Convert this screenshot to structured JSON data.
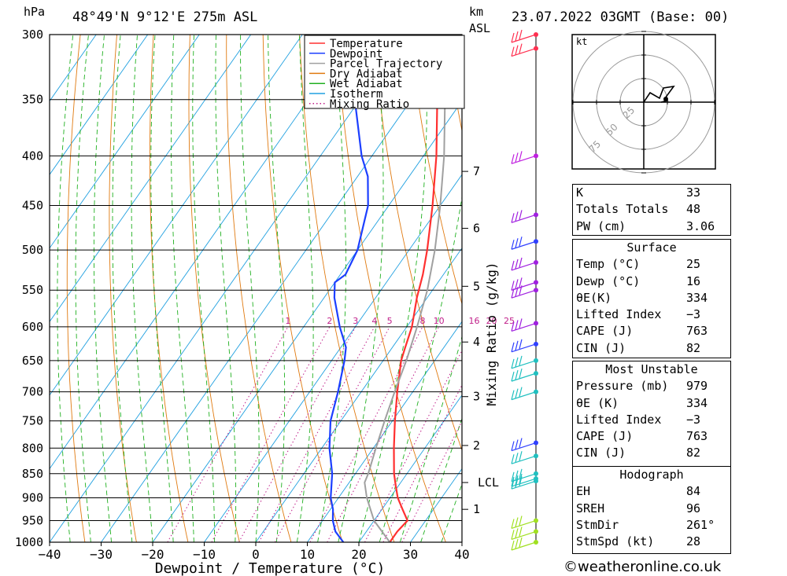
{
  "header": {
    "location": "48°49'N  9°12'E  275m  ASL",
    "hpa_label": "hPa",
    "km_label": "km",
    "asl_label": "ASL",
    "datetime": "23.07.2022  03GMT  (Base: 00)"
  },
  "credit": "©weatheronline.co.uk",
  "chart_data": {
    "type": "line",
    "xlabel": "Dewpoint / Temperature (°C)",
    "ylabel": "hPa",
    "mixing_ratio_axis_label": "Mixing Ratio (g/kg)",
    "xlim": [
      -40,
      40
    ],
    "ylim": [
      1000,
      300
    ],
    "x_ticks": [
      "−40",
      "−30",
      "−20",
      "−10",
      "0",
      "10",
      "20",
      "30",
      "40"
    ],
    "pressure_levels": [
      300,
      350,
      400,
      450,
      500,
      550,
      600,
      650,
      700,
      750,
      800,
      850,
      900,
      950,
      1000
    ],
    "height_ticks_km": [
      {
        "p": 925,
        "label": "1"
      },
      {
        "p": 795,
        "label": "2"
      },
      {
        "p": 708,
        "label": "3"
      },
      {
        "p": 622,
        "label": "4"
      },
      {
        "p": 545,
        "label": "5"
      },
      {
        "p": 475,
        "label": "6"
      },
      {
        "p": 415,
        "label": "7"
      },
      {
        "p": 868,
        "label": "LCL"
      }
    ],
    "mixing_ratio_labels": [
      "1",
      "2",
      "3",
      "4",
      "5",
      "8",
      "10",
      "16",
      "20",
      "25"
    ],
    "mixing_ratio_values": [
      1,
      2,
      3,
      4,
      5,
      8,
      10,
      16,
      20,
      25
    ],
    "legend": [
      {
        "name": "Temperature",
        "color": "#ff3030",
        "dotted": false
      },
      {
        "name": "Dewpoint",
        "color": "#1c3fff",
        "dotted": false
      },
      {
        "name": "Parcel Trajectory",
        "color": "#a0a0a0",
        "dotted": false
      },
      {
        "name": "Dry Adiabat",
        "color": "#e07a10",
        "dotted": false
      },
      {
        "name": "Wet Adiabat",
        "color": "#20b020",
        "dotted": false
      },
      {
        "name": "Isotherm",
        "color": "#20a0e0",
        "dotted": false
      },
      {
        "name": "Mixing Ratio",
        "color": "#c0208a",
        "dotted": true
      }
    ],
    "series": [
      {
        "name": "Temperature",
        "color": "#ff3030",
        "points": [
          [
            1000,
            26.0
          ],
          [
            975,
            26.0
          ],
          [
            950,
            26.5
          ],
          [
            925,
            24.0
          ],
          [
            900,
            21.5
          ],
          [
            875,
            19.5
          ],
          [
            850,
            17.5
          ],
          [
            800,
            14.0
          ],
          [
            750,
            10.5
          ],
          [
            700,
            7.0
          ],
          [
            650,
            3.5
          ],
          [
            630,
            2.5
          ],
          [
            600,
            1.0
          ],
          [
            560,
            -2.0
          ],
          [
            530,
            -4.0
          ],
          [
            500,
            -6.5
          ],
          [
            450,
            -11.5
          ],
          [
            400,
            -17.5
          ],
          [
            350,
            -25.0
          ],
          [
            300,
            -33.5
          ]
        ]
      },
      {
        "name": "Dewpoint",
        "color": "#1c3fff",
        "points": [
          [
            1000,
            17.0
          ],
          [
            975,
            14.0
          ],
          [
            950,
            12.0
          ],
          [
            925,
            10.5
          ],
          [
            900,
            8.5
          ],
          [
            850,
            5.5
          ],
          [
            800,
            1.5
          ],
          [
            750,
            -2.0
          ],
          [
            700,
            -4.5
          ],
          [
            650,
            -7.5
          ],
          [
            630,
            -9.0
          ],
          [
            600,
            -13.0
          ],
          [
            560,
            -18.0
          ],
          [
            540,
            -20.0
          ],
          [
            530,
            -19.0
          ],
          [
            500,
            -20.0
          ],
          [
            450,
            -24.0
          ],
          [
            420,
            -28.0
          ],
          [
            400,
            -32.0
          ],
          [
            350,
            -41.0
          ],
          [
            300,
            -51.0
          ]
        ]
      },
      {
        "name": "Parcel Trajectory",
        "color": "#a0a0a0",
        "points": [
          [
            1000,
            26.0
          ],
          [
            950,
            20.0
          ],
          [
            900,
            15.5
          ],
          [
            868,
            13.0
          ],
          [
            850,
            12.5
          ],
          [
            800,
            10.5
          ],
          [
            750,
            8.5
          ],
          [
            700,
            6.5
          ],
          [
            650,
            4.5
          ],
          [
            600,
            2.0
          ],
          [
            550,
            -1.0
          ],
          [
            500,
            -5.0
          ],
          [
            450,
            -10.0
          ],
          [
            400,
            -16.0
          ],
          [
            350,
            -23.5
          ],
          [
            300,
            -33.0
          ]
        ]
      }
    ],
    "hodograph": {
      "label": "kt",
      "rings": [
        "25",
        "50",
        "75"
      ]
    }
  },
  "indices": {
    "rows": [
      {
        "label": "K",
        "value": "33"
      },
      {
        "label": "Totals Totals",
        "value": "48"
      },
      {
        "label": "PW (cm)",
        "value": "3.06"
      }
    ]
  },
  "surface": {
    "title": "Surface",
    "rows": [
      {
        "label": "Temp (°C)",
        "value": "25"
      },
      {
        "label": "Dewp (°C)",
        "value": "16"
      },
      {
        "label": "θE(K)",
        "value": "334"
      },
      {
        "label": "Lifted Index",
        "value": "−3"
      },
      {
        "label": "CAPE (J)",
        "value": "763"
      },
      {
        "label": "CIN (J)",
        "value": "82"
      }
    ]
  },
  "most_unstable": {
    "title": "Most Unstable",
    "rows": [
      {
        "label": "Pressure (mb)",
        "value": "979"
      },
      {
        "label": "θE (K)",
        "value": "334"
      },
      {
        "label": "Lifted Index",
        "value": "−3"
      },
      {
        "label": "CAPE (J)",
        "value": "763"
      },
      {
        "label": "CIN (J)",
        "value": "82"
      }
    ]
  },
  "hodograph_stats": {
    "title": "Hodograph",
    "rows": [
      {
        "label": "EH",
        "value": "84"
      },
      {
        "label": "SREH",
        "value": "96"
      },
      {
        "label": "StmDir",
        "value": "261°"
      },
      {
        "label": "StmSpd (kt)",
        "value": "28"
      }
    ]
  }
}
